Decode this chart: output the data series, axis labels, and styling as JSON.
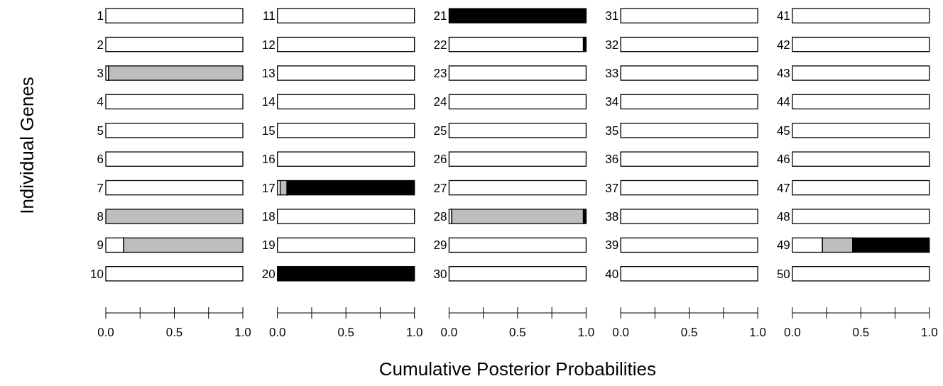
{
  "chart_data": [
    {
      "type": "bar",
      "orientation": "horizontal",
      "stacked": true,
      "ylabel": "Individual Genes",
      "categories": [
        "1",
        "2",
        "3",
        "4",
        "5",
        "6",
        "7",
        "8",
        "9",
        "10"
      ],
      "xlim": [
        0,
        1
      ],
      "xticks": [
        {
          "value": 0,
          "label": "0.0"
        },
        {
          "value": 0.25,
          "label": null
        },
        {
          "value": 0.5,
          "label": "0.5"
        },
        {
          "value": 0.75,
          "label": null
        },
        {
          "value": 1,
          "label": "1.0"
        }
      ],
      "series": [
        {
          "color": "#ffffff",
          "values": [
            1,
            1,
            0.02,
            1,
            1,
            1,
            1,
            0,
            0.13,
            1
          ]
        },
        {
          "color": "#bebebe",
          "values": [
            0,
            0,
            0.98,
            0,
            0,
            0,
            0,
            1,
            0.87,
            0
          ]
        },
        {
          "color": "#000000",
          "values": [
            0,
            0,
            0,
            0,
            0,
            0,
            0,
            0,
            0,
            0
          ]
        }
      ]
    },
    {
      "type": "bar",
      "orientation": "horizontal",
      "stacked": true,
      "categories": [
        "11",
        "12",
        "13",
        "14",
        "15",
        "16",
        "17",
        "18",
        "19",
        "20"
      ],
      "xlim": [
        0,
        1
      ],
      "xticks": [
        {
          "value": 0,
          "label": "0.0"
        },
        {
          "value": 0.25,
          "label": null
        },
        {
          "value": 0.5,
          "label": "0.5"
        },
        {
          "value": 0.75,
          "label": null
        },
        {
          "value": 1,
          "label": "1.0"
        }
      ],
      "series": [
        {
          "color": "#ffffff",
          "values": [
            1,
            1,
            1,
            1,
            1,
            1,
            0.02,
            1,
            1,
            0
          ]
        },
        {
          "color": "#bebebe",
          "values": [
            0,
            0,
            0,
            0,
            0,
            0,
            0.05,
            0,
            0,
            0
          ]
        },
        {
          "color": "#000000",
          "values": [
            0,
            0,
            0,
            0,
            0,
            0,
            0.93,
            0,
            0,
            1
          ]
        }
      ]
    },
    {
      "type": "bar",
      "orientation": "horizontal",
      "stacked": true,
      "xlabel": "Cumulative Posterior Probabilities",
      "categories": [
        "21",
        "22",
        "23",
        "24",
        "25",
        "26",
        "27",
        "28",
        "29",
        "30"
      ],
      "xlim": [
        0,
        1
      ],
      "xticks": [
        {
          "value": 0,
          "label": "0.0"
        },
        {
          "value": 0.25,
          "label": null
        },
        {
          "value": 0.5,
          "label": "0.5"
        },
        {
          "value": 0.75,
          "label": null
        },
        {
          "value": 1,
          "label": "1.0"
        }
      ],
      "series": [
        {
          "color": "#ffffff",
          "values": [
            0,
            0.98,
            1,
            1,
            1,
            1,
            1,
            0.02,
            1,
            1
          ]
        },
        {
          "color": "#bebebe",
          "values": [
            0,
            0,
            0,
            0,
            0,
            0,
            0,
            0.96,
            0,
            0
          ]
        },
        {
          "color": "#000000",
          "values": [
            1,
            0.02,
            0,
            0,
            0,
            0,
            0,
            0.02,
            0,
            0
          ]
        }
      ]
    },
    {
      "type": "bar",
      "orientation": "horizontal",
      "stacked": true,
      "categories": [
        "31",
        "32",
        "33",
        "34",
        "35",
        "36",
        "37",
        "38",
        "39",
        "40"
      ],
      "xlim": [
        0,
        1
      ],
      "xticks": [
        {
          "value": 0,
          "label": "0.0"
        },
        {
          "value": 0.25,
          "label": null
        },
        {
          "value": 0.5,
          "label": "0.5"
        },
        {
          "value": 0.75,
          "label": null
        },
        {
          "value": 1,
          "label": "1.0"
        }
      ],
      "series": [
        {
          "color": "#ffffff",
          "values": [
            1,
            1,
            1,
            1,
            1,
            1,
            1,
            1,
            1,
            1
          ]
        },
        {
          "color": "#bebebe",
          "values": [
            0,
            0,
            0,
            0,
            0,
            0,
            0,
            0,
            0,
            0
          ]
        },
        {
          "color": "#000000",
          "values": [
            0,
            0,
            0,
            0,
            0,
            0,
            0,
            0,
            0,
            0
          ]
        }
      ]
    },
    {
      "type": "bar",
      "orientation": "horizontal",
      "stacked": true,
      "categories": [
        "41",
        "42",
        "43",
        "44",
        "45",
        "46",
        "47",
        "48",
        "49",
        "50"
      ],
      "xlim": [
        0,
        1
      ],
      "xticks": [
        {
          "value": 0,
          "label": "0.0"
        },
        {
          "value": 0.25,
          "label": null
        },
        {
          "value": 0.5,
          "label": "0.5"
        },
        {
          "value": 0.75,
          "label": null
        },
        {
          "value": 1,
          "label": "1.0"
        }
      ],
      "series": [
        {
          "color": "#ffffff",
          "values": [
            1,
            1,
            1,
            1,
            1,
            1,
            1,
            1,
            0.22,
            1
          ]
        },
        {
          "color": "#bebebe",
          "values": [
            0,
            0,
            0,
            0,
            0,
            0,
            0,
            0,
            0.22,
            0
          ]
        },
        {
          "color": "#000000",
          "values": [
            0,
            0,
            0,
            0,
            0,
            0,
            0,
            0,
            0.56,
            0
          ]
        }
      ]
    }
  ]
}
